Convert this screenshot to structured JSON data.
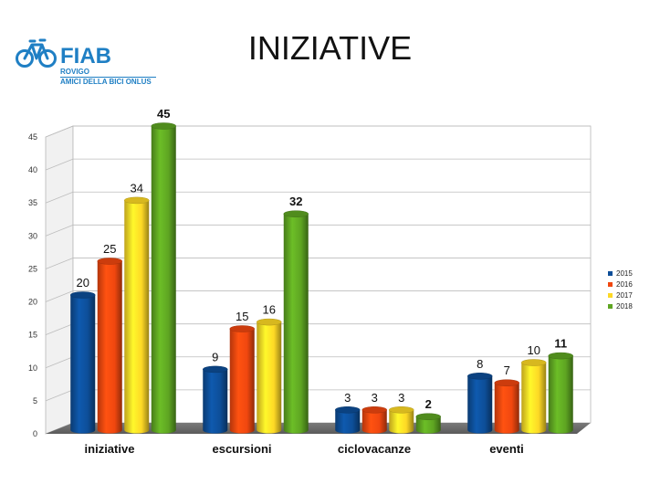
{
  "title": "INIZIATIVE",
  "logo": {
    "brand": "FIAB",
    "city": "ROVIGO",
    "subtitle": "AMICI DELLA BICI ONLUS",
    "icon": "bicycle-icon",
    "color": "#1f7fc4"
  },
  "chart_data": {
    "type": "bar",
    "style": "3d-cylinder",
    "categories": [
      "iniziative",
      "escursioni",
      "ciclovacanze",
      "eventi"
    ],
    "series": [
      {
        "name": "2015",
        "values": [
          20,
          9,
          3,
          8
        ],
        "color": "#0d4e98"
      },
      {
        "name": "2016",
        "values": [
          25,
          15,
          3,
          7
        ],
        "color": "#f0470f"
      },
      {
        "name": "2017",
        "values": [
          34,
          16,
          3,
          10
        ],
        "color": "#fdd825"
      },
      {
        "name": "2018",
        "values": [
          45,
          32,
          2,
          11
        ],
        "color": "#5ea522"
      }
    ],
    "ylim": [
      0,
      45
    ],
    "yticks": [
      0,
      5,
      10,
      15,
      20,
      25,
      30,
      35,
      40,
      45
    ],
    "bold_series": "2018",
    "grid": true,
    "legend_position": "right"
  }
}
